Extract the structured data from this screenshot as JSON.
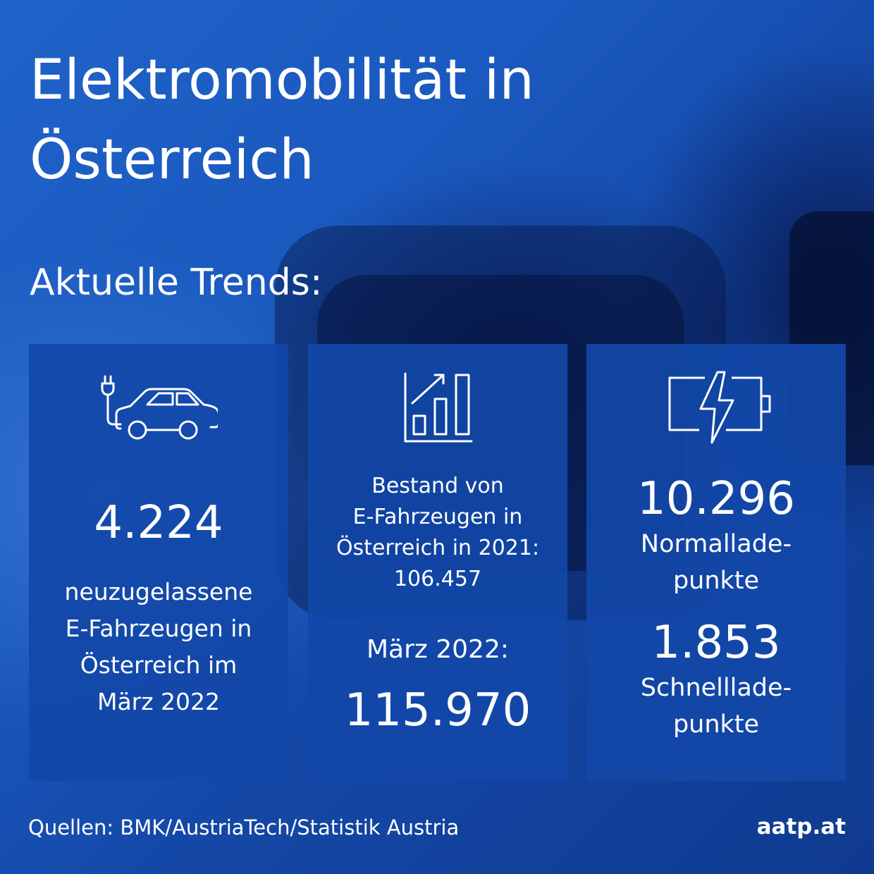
{
  "title": {
    "line1": "Elektromobilität in",
    "line2": "Österreich"
  },
  "subtitle": "Aktuelle Trends:",
  "cards": [
    {
      "icon": "electric-car-icon",
      "value": "4.224",
      "lines": [
        "neuzugelassene",
        "E-Fahrzeugen in",
        "Österreich im",
        "März 2022"
      ]
    },
    {
      "icon": "growth-chart-icon",
      "lines": [
        "Bestand von",
        "E-Fahrzeugen in",
        "Österreich in 2021:",
        "106.457"
      ],
      "label": "März 2022:",
      "value": "115.970"
    },
    {
      "icon": "battery-charge-icon",
      "value1": "10.296",
      "label1": [
        "Normallade-",
        "punkte"
      ],
      "value2": "1.853",
      "label2": [
        "Schnelllade-",
        "punkte"
      ]
    }
  ],
  "footer": {
    "sources": "Quellen: BMK/AustriaTech/Statistik Austria",
    "website": "aatp.at"
  },
  "colors": {
    "background": "#1a58be",
    "card": "#1248a8",
    "text": "#ffffff"
  }
}
